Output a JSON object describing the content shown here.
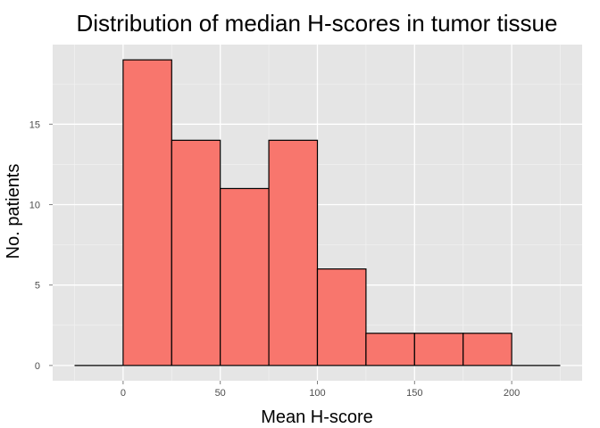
{
  "chart_data": {
    "type": "bar",
    "title": "Distribution of median H-scores in tumor tissue",
    "xlabel": "Mean H-score",
    "ylabel": "No. patients",
    "bins": [
      {
        "x0": -25,
        "x1": 0,
        "count": 0
      },
      {
        "x0": 0,
        "x1": 25,
        "count": 19
      },
      {
        "x0": 25,
        "x1": 50,
        "count": 14
      },
      {
        "x0": 50,
        "x1": 75,
        "count": 11
      },
      {
        "x0": 75,
        "x1": 100,
        "count": 14
      },
      {
        "x0": 100,
        "x1": 125,
        "count": 6
      },
      {
        "x0": 125,
        "x1": 150,
        "count": 2
      },
      {
        "x0": 150,
        "x1": 175,
        "count": 2
      },
      {
        "x0": 175,
        "x1": 200,
        "count": 2
      },
      {
        "x0": 200,
        "x1": 225,
        "count": 0
      }
    ],
    "xlim": [
      -36.25,
      236.25
    ],
    "ylim": [
      -0.95,
      19.95
    ],
    "xticks": [
      0,
      50,
      100,
      150,
      200
    ],
    "yticks": [
      0,
      5,
      10,
      15
    ],
    "grid": true,
    "legend": "none",
    "colors": {
      "fill": "#F8766D",
      "stroke": "#000000",
      "panel": "#E5E5E5",
      "grid_major": "#FFFFFF",
      "grid_minor": "#F2F2F2"
    }
  }
}
